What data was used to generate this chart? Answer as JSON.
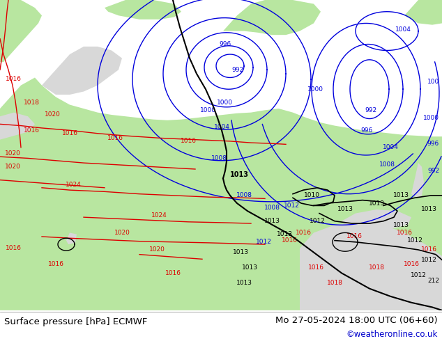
{
  "title_left": "Surface pressure [hPa] ECMWF",
  "title_right": "Mo 27-05-2024 18:00 UTC (06+60)",
  "credit": "©weatheronline.co.uk",
  "bg_color": "#d8d8d8",
  "green_color": "#b8e6a0",
  "footer_color": "#ffffff",
  "black_color": "#000000",
  "blue_color": "#0000dd",
  "red_color": "#dd0000",
  "credit_color": "#0000cc"
}
